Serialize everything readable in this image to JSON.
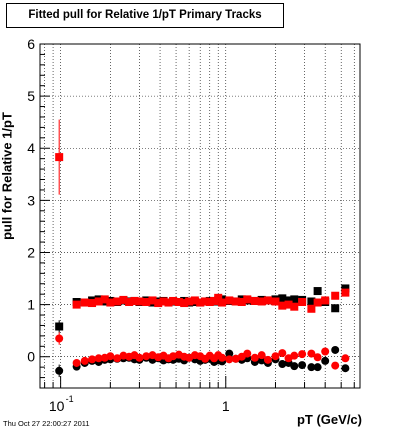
{
  "chart_data": {
    "type": "scatter",
    "title": "Fitted pull for Relative 1/pT  Primary Tracks",
    "xlabel": "pT (GeV/c)",
    "ylabel": "pull for Relative 1/pT",
    "xscale": "log",
    "xlim": [
      0.075,
      6.5
    ],
    "ylim": [
      -0.6,
      6
    ],
    "xtick_labels": [
      {
        "value": 0.1,
        "base": "10",
        "exp": "-1"
      },
      {
        "value": 1,
        "base": "1",
        "exp": ""
      }
    ],
    "ytick_labels": [
      "0",
      "1",
      "2",
      "3",
      "4",
      "5",
      "6"
    ],
    "ytick_values": [
      0,
      1,
      2,
      3,
      4,
      5,
      6
    ],
    "grid": true,
    "footer": "Thu Oct 27 22:00:27 2011",
    "series_styles": [
      {
        "color": "#000000",
        "marker": "square"
      },
      {
        "color": "#000000",
        "marker": "circle"
      },
      {
        "color": "#ff0000",
        "marker": "square"
      },
      {
        "color": "#ff0000",
        "marker": "circle"
      }
    ],
    "x": [
      0.098,
      0.125,
      0.14,
      0.155,
      0.17,
      0.185,
      0.2,
      0.22,
      0.24,
      0.26,
      0.28,
      0.3,
      0.33,
      0.36,
      0.39,
      0.42,
      0.45,
      0.48,
      0.52,
      0.56,
      0.6,
      0.65,
      0.7,
      0.75,
      0.8,
      0.85,
      0.9,
      0.95,
      1.05,
      1.15,
      1.25,
      1.35,
      1.5,
      1.65,
      1.8,
      2.0,
      2.2,
      2.4,
      2.6,
      2.9,
      3.3,
      3.6,
      4.0,
      4.6,
      5.3
    ],
    "series": [
      {
        "values": [
          0.58,
          1.05,
          1.04,
          1.08,
          1.1,
          1.06,
          1.07,
          1.05,
          1.08,
          1.06,
          1.07,
          1.05,
          1.08,
          1.04,
          1.06,
          1.07,
          1.04,
          1.06,
          1.05,
          1.07,
          1.04,
          1.05,
          1.04,
          1.06,
          1.07,
          1.06,
          1.08,
          1.1,
          1.07,
          1.06,
          1.1,
          1.08,
          1.07,
          1.09,
          1.08,
          1.1,
          1.12,
          1.08,
          1.1,
          1.09,
          1.06,
          1.26,
          1.05,
          0.93,
          1.31
        ]
      },
      {
        "values": [
          -0.27,
          -0.19,
          -0.12,
          -0.08,
          -0.1,
          -0.06,
          -0.05,
          -0.04,
          -0.03,
          -0.02,
          -0.05,
          -0.06,
          -0.02,
          -0.06,
          -0.03,
          -0.07,
          -0.05,
          -0.06,
          -0.04,
          -0.07,
          -0.02,
          -0.05,
          -0.08,
          -0.06,
          -0.04,
          -0.1,
          -0.07,
          -0.09,
          0.06,
          -0.04,
          -0.06,
          -0.03,
          -0.1,
          -0.07,
          -0.12,
          -0.05,
          -0.14,
          -0.12,
          -0.18,
          -0.16,
          -0.2,
          -0.2,
          -0.08,
          0.13,
          -0.22
        ]
      },
      {
        "values": [
          3.83,
          1.0,
          1.04,
          1.03,
          1.06,
          1.1,
          1.04,
          1.06,
          1.09,
          1.05,
          1.07,
          1.06,
          1.05,
          1.08,
          1.03,
          1.06,
          1.04,
          1.07,
          1.05,
          1.03,
          1.06,
          1.08,
          1.04,
          1.06,
          1.05,
          1.07,
          1.13,
          1.04,
          1.08,
          1.06,
          1.05,
          1.1,
          1.07,
          1.06,
          1.08,
          1.06,
          0.98,
          1.0,
          0.96,
          1.05,
          0.92,
          1.04,
          1.08,
          1.17,
          1.23
        ]
      },
      {
        "values": [
          0.35,
          -0.12,
          -0.08,
          -0.05,
          -0.03,
          -0.02,
          0.01,
          -0.03,
          0.02,
          0.0,
          0.03,
          -0.02,
          0.01,
          0.03,
          -0.01,
          0.02,
          -0.03,
          0.01,
          0.04,
          0.0,
          -0.02,
          0.03,
          0.01,
          -0.04,
          0.02,
          -0.03,
          0.03,
          -0.02,
          -0.05,
          -0.04,
          0.0,
          0.06,
          -0.02,
          0.03,
          -0.06,
          0.01,
          0.07,
          -0.03,
          0.02,
          0.05,
          0.06,
          -0.01,
          0.1,
          -0.17,
          -0.03
        ]
      }
    ]
  }
}
